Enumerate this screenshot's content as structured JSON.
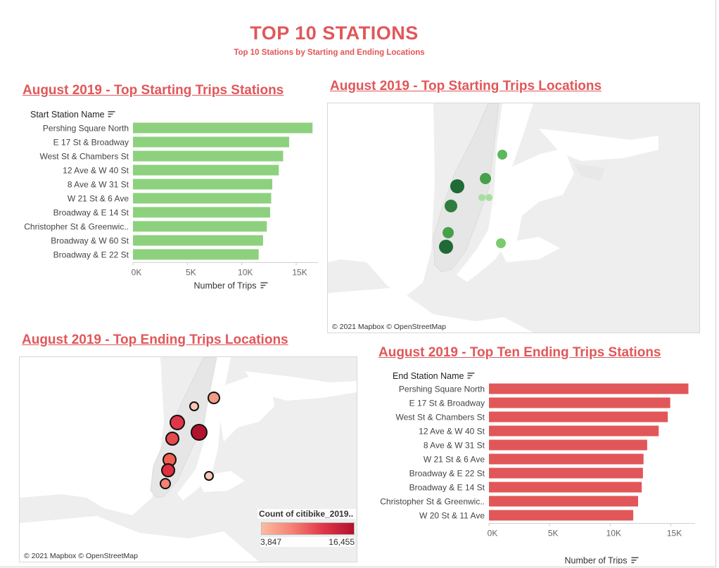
{
  "dashboard": {
    "title": "TOP 10 STATIONS",
    "subtitle": "Top 10 Stations by Starting and Ending Locations"
  },
  "sheets": {
    "start_bars_title": "August 2019 - Top Starting Trips Stations",
    "start_map_title": "August 2019 - Top Starting Trips Locations",
    "end_map_title": "August 2019 - Top Ending Trips Locations",
    "end_bars_title": "August 2019 - Top Ten Ending Trips Stations"
  },
  "maps": {
    "credit": "© 2021 Mapbox © OpenStreetMap",
    "legend_title": "Count of citibike_2019..",
    "legend_min": "3,847",
    "legend_max": "16,455",
    "legend_min_value": 3847,
    "legend_max_value": 16455
  },
  "chart_data": [
    {
      "type": "bar",
      "orientation": "horizontal",
      "title": "August 2019 - Top Starting Trips Stations",
      "category_header": "Start Station Name",
      "xlabel": "Number of Trips",
      "xlim": [
        0,
        17000
      ],
      "xticks": [
        "0K",
        "5K",
        "10K",
        "15K"
      ],
      "xtick_values": [
        0,
        5000,
        10000,
        15000
      ],
      "categories": [
        "Pershing Square North",
        "E 17 St & Broadway",
        "West St & Chambers St",
        "12 Ave & W 40 St",
        "8 Ave & W 31 St",
        "W 21 St & 6 Ave",
        "Broadway & E 14 St",
        "Christopher St & Greenwic..",
        "Broadway & W 60 St",
        "Broadway & E 22 St"
      ],
      "values": [
        16500,
        14350,
        13800,
        13400,
        12800,
        12700,
        12600,
        12300,
        11950,
        11550
      ],
      "color": "#8dd17e"
    },
    {
      "type": "bar",
      "orientation": "horizontal",
      "title": "August 2019 - Top Ten Ending Trips Stations",
      "category_header": "End Station Name",
      "xlabel": "Number of Trips",
      "xlim": [
        0,
        17000
      ],
      "xticks": [
        "0K",
        "5K",
        "10K",
        "15K"
      ],
      "xtick_values": [
        0,
        5000,
        10000,
        15000
      ],
      "categories": [
        "Pershing Square North",
        "E 17 St & Broadway",
        "West St & Chambers St",
        "12 Ave & W 40 St",
        "8 Ave & W 31 St",
        "W 21 St & 6 Ave",
        "Broadway & E 22 St",
        "Broadway & E 14 St",
        "Christopher St & Greenwic..",
        "W 20 St & 11 Ave"
      ],
      "values": [
        16450,
        14950,
        14750,
        14000,
        13050,
        12750,
        12700,
        12600,
        12300,
        11900
      ],
      "color": "#e15759"
    }
  ]
}
